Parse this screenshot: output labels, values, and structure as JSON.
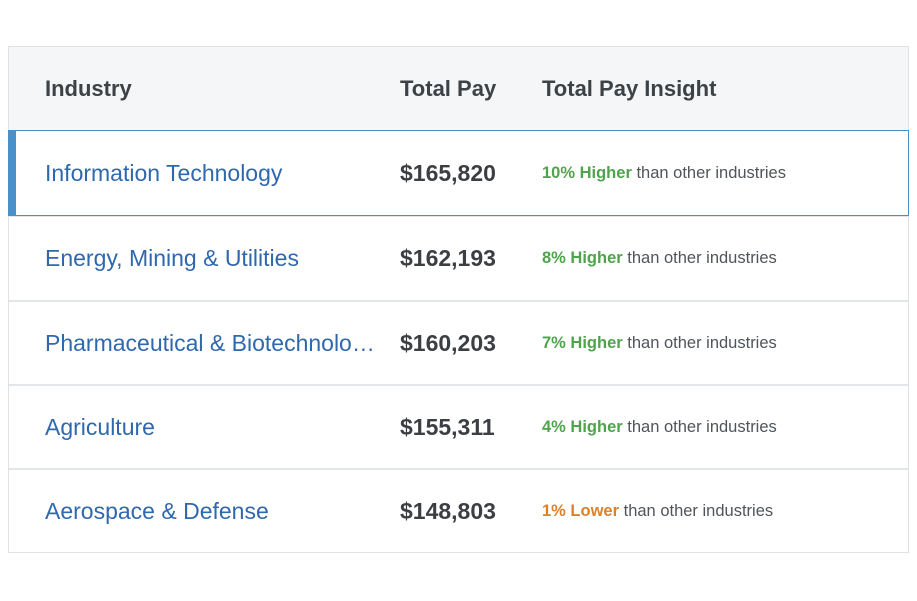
{
  "columns": {
    "industry": "Industry",
    "total_pay": "Total Pay",
    "insight": "Total Pay Insight"
  },
  "rows": [
    {
      "industry": "Information Technology",
      "pay": "$165,820",
      "pct": "10% Higher",
      "direction": "higher",
      "suffix": " than other industries",
      "selected": true
    },
    {
      "industry": "Energy, Mining & Utilities",
      "pay": "$162,193",
      "pct": "8% Higher",
      "direction": "higher",
      "suffix": " than other industries",
      "selected": false
    },
    {
      "industry": "Pharmaceutical & Biotechnolo…",
      "pay": "$160,203",
      "pct": "7% Higher",
      "direction": "higher",
      "suffix": " than other industries",
      "selected": false
    },
    {
      "industry": "Agriculture",
      "pay": "$155,311",
      "pct": "4% Higher",
      "direction": "higher",
      "suffix": " than other industries",
      "selected": false
    },
    {
      "industry": "Aerospace & Defense",
      "pay": "$148,803",
      "pct": "1% Lower",
      "direction": "lower",
      "suffix": " than other industries",
      "selected": false
    }
  ],
  "colors": {
    "link": "#2f68ad",
    "higher": "#4fa34c",
    "lower": "#d9822b",
    "selected_accent": "#4a90c9"
  }
}
